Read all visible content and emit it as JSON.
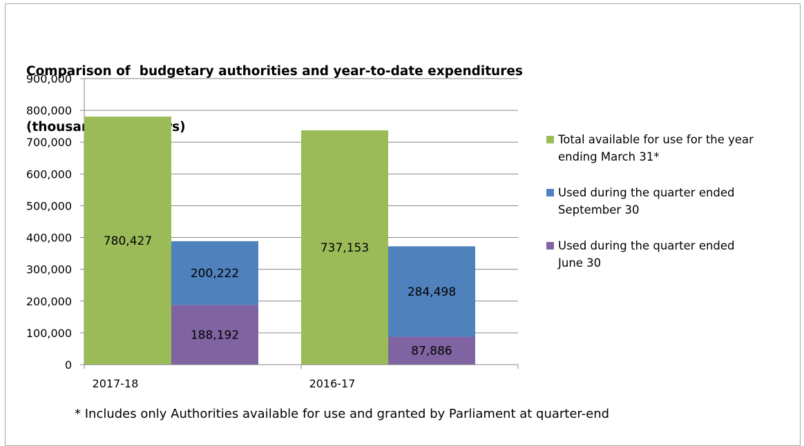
{
  "chart_data": {
    "type": "bar",
    "title": "Comparison of  budgetary authorities and year-to-date expenditures",
    "subtitle": "(thousands of dollars)",
    "categories": [
      "2017-18",
      "2016-17"
    ],
    "ylim": [
      0,
      900000
    ],
    "yticks": [
      "900,000",
      "800,000",
      "700,000",
      "600,000",
      "500,000",
      "400,000",
      "300,000",
      "200,000",
      "100,000",
      "0"
    ],
    "ytick_values": [
      900000,
      800000,
      700000,
      600000,
      500000,
      400000,
      300000,
      200000,
      100000,
      0
    ],
    "grid": true,
    "legend_position": "right",
    "series": [
      {
        "name": "Total available for use for the year ending  March 31*",
        "values": [
          780427,
          737153
        ],
        "labels": [
          "780,427",
          "737,153"
        ],
        "color": "#9bbb59",
        "stack": "total"
      },
      {
        "name": "Used during the quarter ended June 30",
        "values": [
          188192,
          87886
        ],
        "labels": [
          "188,192",
          "87,886"
        ],
        "color": "#8064a2",
        "stack": "used"
      },
      {
        "name": "Used during the quarter ended September 30",
        "values": [
          200222,
          284498
        ],
        "labels": [
          "200,222",
          "284,498"
        ],
        "color": "#4f81bd",
        "stack": "used"
      }
    ],
    "legend": [
      {
        "text": "Total available for use for the year\nending  March 31*",
        "color": "#9bbb59"
      },
      {
        "text": "Used during the quarter ended\nSeptember 30",
        "color": "#4f81bd"
      },
      {
        "text": "Used during the quarter ended\nJune 30",
        "color": "#8064a2"
      }
    ],
    "footnote": "* Includes only Authorities available for use and granted by Parliament at quarter-end"
  }
}
